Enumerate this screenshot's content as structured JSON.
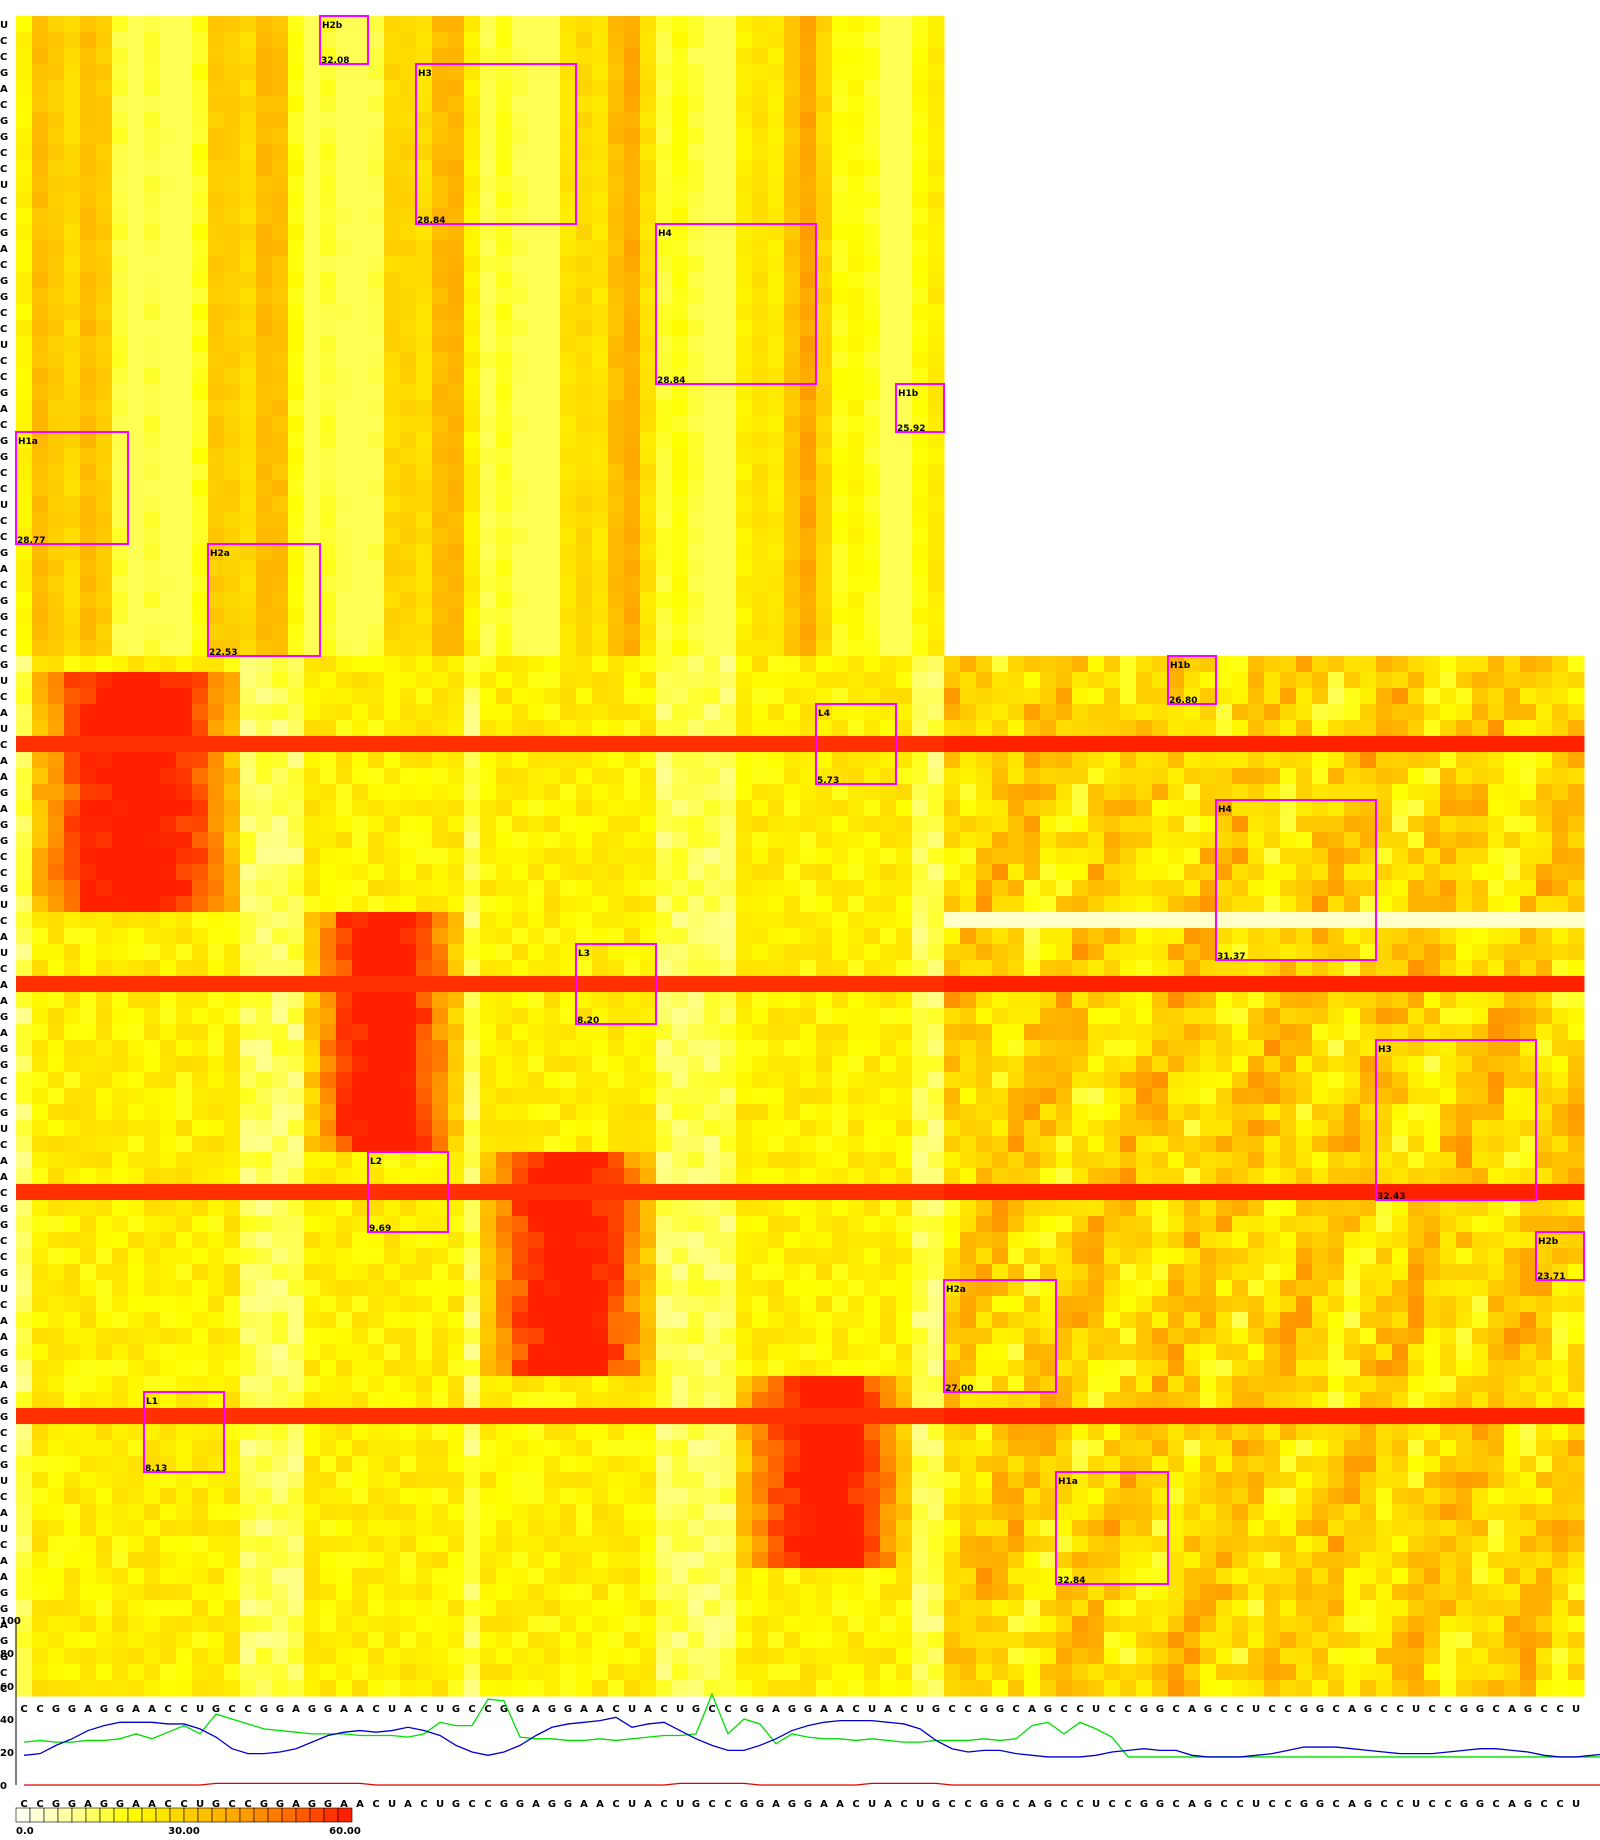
{
  "chart_data": [
    {
      "type": "heatmap",
      "title": "",
      "x_sequence": "CCGGAGGAACCUGCCGGAGGAACUACUGCCGGAGGAACUACUGCCGGAGGAACUACUGCCGGCAGCCUCCGGCAGCCUCCGGCAGCCUCCGGCAGCCU",
      "y_sequence": "UCCGACGGCCUCCGACGGCCUCCGACGGCCUCCGACGGCCGUCAUCAAGAGGCCGUCAUCAAGAGGCCGUCAACGGCCGUCAAGGAGGCCGUCAUCAAGGAGGCC",
      "blocks": [
        {
          "id": "L1",
          "value": "8.13",
          "x": [
            8,
            12
          ],
          "y": [
            86,
            90
          ]
        },
        {
          "id": "L2",
          "value": "9.69",
          "x": [
            22,
            26
          ],
          "y": [
            71,
            75
          ]
        },
        {
          "id": "L3",
          "value": "8.20",
          "x": [
            35,
            39
          ],
          "y": [
            58,
            62
          ]
        },
        {
          "id": "L4",
          "value": "5.73",
          "x": [
            50,
            54
          ],
          "y": [
            43,
            47
          ]
        },
        {
          "id": "H1a",
          "value": "28.77",
          "x": [
            0,
            6
          ],
          "y": [
            26,
            32
          ]
        },
        {
          "id": "H1b",
          "value": "25.92",
          "x": [
            55,
            57
          ],
          "y": [
            23,
            25
          ]
        },
        {
          "id": "H2a",
          "value": "22.53",
          "x": [
            12,
            18
          ],
          "y": [
            33,
            39
          ]
        },
        {
          "id": "H2b",
          "value": "32.08",
          "x": [
            19,
            21
          ],
          "y": [
            0,
            2
          ]
        },
        {
          "id": "H3",
          "value": "28.84",
          "x": [
            25,
            34
          ],
          "y": [
            3,
            12
          ]
        },
        {
          "id": "H4",
          "value": "28.84",
          "x": [
            40,
            49
          ],
          "y": [
            13,
            22
          ]
        },
        {
          "id": "H1b",
          "value": "26.80",
          "x": [
            72,
            74
          ],
          "y": [
            40,
            42
          ]
        },
        {
          "id": "H4",
          "value": "31.37",
          "x": [
            75,
            84
          ],
          "y": [
            49,
            58
          ]
        },
        {
          "id": "H3",
          "value": "32.43",
          "x": [
            85,
            94
          ],
          "y": [
            64,
            73
          ]
        },
        {
          "id": "H2b",
          "value": "23.71",
          "x": [
            95,
            97
          ],
          "y": [
            76,
            78
          ]
        },
        {
          "id": "H2a",
          "value": "27.00",
          "x": [
            58,
            64
          ],
          "y": [
            79,
            85
          ]
        },
        {
          "id": "H1a",
          "value": "32.84",
          "x": [
            65,
            71
          ],
          "y": [
            91,
            97
          ]
        }
      ],
      "color_scale": {
        "min": 0,
        "max": 60,
        "tick_labels": [
          "0.0",
          "30.00",
          "60.00"
        ],
        "colors": [
          "#fffff0",
          "#ffff90",
          "#ffff00",
          "#ffd200",
          "#ffa500",
          "#ff6a00",
          "#ff2000"
        ]
      },
      "block_box_color": "#ff00ff"
    },
    {
      "type": "line",
      "title": "",
      "ylim": [
        0,
        100
      ],
      "y_ticks": [
        "0",
        "20",
        "40",
        "60",
        "80",
        "100"
      ],
      "x_sequence": "CCGGAGGAACCUGCCGGAGGAACUACUGCCGGAGGAACUACUGCCGGAGGAACUACUGCCGGCAGCCUCCGGCAGCCUCCGGCAGCCUCCGGCAGCCU",
      "series": [
        {
          "color": "#00dd00",
          "values": [
            26,
            27,
            26,
            26,
            27,
            27,
            28,
            31,
            28,
            32,
            36,
            31,
            43,
            40,
            37,
            34,
            33,
            32,
            31,
            31,
            31,
            30,
            30,
            30,
            29,
            31,
            38,
            36,
            36,
            52,
            51,
            29,
            28,
            28,
            27,
            27,
            28,
            27,
            28,
            29,
            30,
            30,
            31,
            55,
            31,
            40,
            37,
            25,
            31,
            29,
            28,
            28,
            27,
            28,
            27,
            26,
            26,
            27,
            27,
            27,
            28,
            27,
            28,
            36,
            38,
            31,
            38,
            34,
            29,
            17,
            17,
            17,
            17,
            17,
            17,
            17,
            17,
            17,
            17,
            17,
            17,
            17,
            17,
            17,
            17,
            17,
            17,
            17,
            17,
            17,
            17,
            17,
            17,
            17,
            17,
            17,
            17,
            17,
            17,
            17
          ]
        },
        {
          "color": "#0000cc",
          "values": [
            18,
            19,
            24,
            28,
            33,
            36,
            38,
            38,
            38,
            37,
            37,
            34,
            29,
            22,
            19,
            19,
            20,
            22,
            26,
            30,
            32,
            33,
            32,
            33,
            35,
            33,
            30,
            24,
            20,
            18,
            20,
            24,
            30,
            35,
            37,
            38,
            39,
            41,
            35,
            37,
            38,
            33,
            28,
            24,
            21,
            21,
            24,
            28,
            33,
            36,
            38,
            39,
            39,
            39,
            38,
            37,
            34,
            27,
            22,
            20,
            21,
            21,
            19,
            18,
            17,
            17,
            17,
            18,
            20,
            21,
            22,
            21,
            21,
            18,
            17,
            17,
            17,
            18,
            19,
            21,
            23,
            23,
            23,
            22,
            21,
            20,
            19,
            19,
            19,
            20,
            21,
            22,
            22,
            21,
            20,
            18,
            17,
            17,
            18,
            19
          ]
        },
        {
          "color": "#dd0000",
          "values": [
            0,
            0,
            0,
            0,
            0,
            0,
            0,
            0,
            0,
            0,
            0,
            0,
            1,
            1,
            1,
            1,
            1,
            1,
            1,
            1,
            1,
            1,
            0,
            0,
            0,
            0,
            0,
            0,
            0,
            0,
            0,
            0,
            0,
            0,
            0,
            0,
            0,
            0,
            0,
            0,
            0,
            1,
            1,
            1,
            1,
            1,
            0,
            0,
            0,
            0,
            0,
            0,
            0,
            1,
            1,
            1,
            1,
            1,
            0,
            0,
            0,
            0,
            0,
            0,
            0,
            0,
            0,
            0,
            0,
            0,
            0,
            0,
            0,
            0,
            0,
            0,
            0,
            0,
            0,
            0,
            0,
            0,
            0,
            0,
            0,
            0,
            0,
            0,
            0,
            0,
            0,
            0,
            0,
            0,
            0,
            0,
            0,
            0,
            0,
            0
          ]
        }
      ]
    }
  ]
}
